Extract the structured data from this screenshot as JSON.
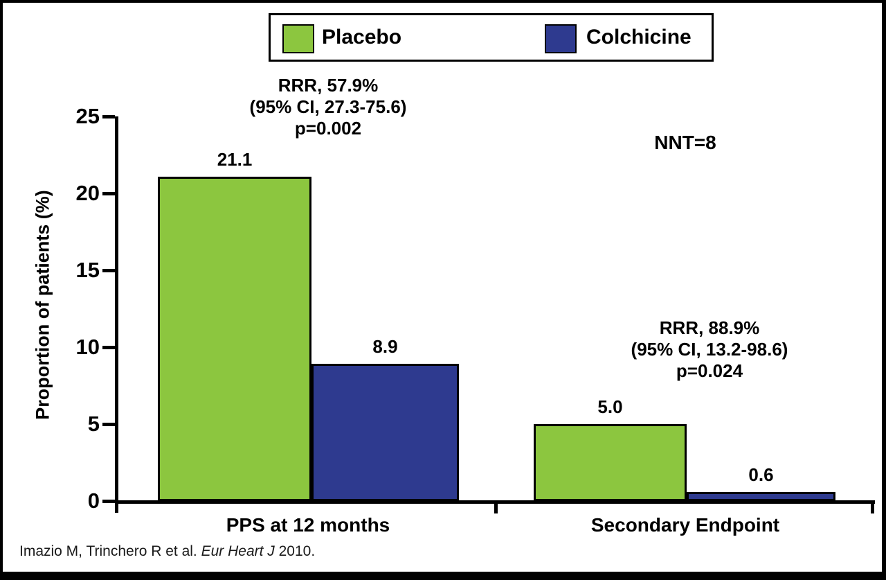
{
  "chart_data": {
    "type": "bar",
    "categories": [
      "PPS at 12 months",
      "Secondary Endpoint"
    ],
    "series": [
      {
        "name": "Placebo",
        "color": "#8CC63F",
        "values": [
          21.1,
          5.0
        ],
        "labels": [
          "21.1",
          "5.0"
        ]
      },
      {
        "name": "Colchicine",
        "color": "#2E3A8F",
        "values": [
          8.9,
          0.6
        ],
        "labels": [
          "8.9",
          "0.6"
        ]
      }
    ],
    "title": "",
    "xlabel": "",
    "ylabel": "Proportion of patients (%)",
    "ylim": [
      0,
      25
    ],
    "yticks": [
      0,
      5,
      10,
      15,
      20,
      25
    ],
    "grid": false,
    "legend_position": "top-center",
    "annotations": {
      "group1": {
        "line1": "RRR, 57.9%",
        "line2": "(95% CI, 27.3-75.6)",
        "line3": "p=0.002"
      },
      "nnt": "NNT=8",
      "group2": {
        "line1": "RRR, 88.9%",
        "line2": "(95% CI, 13.2-98.6)",
        "line3": "p=0.024"
      }
    },
    "citation": {
      "prefix": "Imazio M, Trinchero R et al. ",
      "italic": "Eur Heart J",
      "suffix": " 2010."
    }
  },
  "colors": {
    "placebo_green": "#8CC63F",
    "colchicine_blue": "#2E3A8F",
    "frame_black": "#000000",
    "background": "#FFFFFF"
  }
}
